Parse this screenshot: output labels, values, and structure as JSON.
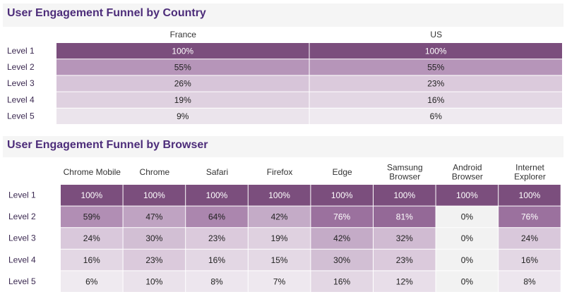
{
  "chart_data": [
    {
      "type": "heatmap",
      "title": "User Engagement  Funnel by Country",
      "columns": [
        "France",
        "US"
      ],
      "rows": [
        "Level 1",
        "Level 2",
        "Level 3",
        "Level 4",
        "Level 5"
      ],
      "values": [
        [
          "100%",
          "100%"
        ],
        [
          "55%",
          "55%"
        ],
        [
          "26%",
          "23%"
        ],
        [
          "19%",
          "16%"
        ],
        [
          "9%",
          "6%"
        ]
      ]
    },
    {
      "type": "heatmap",
      "title": "User Engagement Funnel by Browser",
      "columns": [
        "Chrome Mobile",
        "Chrome",
        "Safari",
        "Firefox",
        "Edge",
        "Samsung Browser",
        "Android Browser",
        "Internet Explorer"
      ],
      "rows": [
        "Level 1",
        "Level 2",
        "Level 3",
        "Level 4",
        "Level 5"
      ],
      "values": [
        [
          "100%",
          "100%",
          "100%",
          "100%",
          "100%",
          "100%",
          "100%",
          "100%"
        ],
        [
          "59%",
          "47%",
          "64%",
          "42%",
          "76%",
          "81%",
          "0%",
          "76%"
        ],
        [
          "24%",
          "30%",
          "23%",
          "19%",
          "42%",
          "32%",
          "0%",
          "24%"
        ],
        [
          "16%",
          "23%",
          "16%",
          "15%",
          "30%",
          "23%",
          "0%",
          "16%"
        ],
        [
          "6%",
          "10%",
          "8%",
          "7%",
          "16%",
          "12%",
          "0%",
          "8%"
        ]
      ]
    }
  ],
  "colors": {
    "title": "#4d2d7a",
    "level_1": "#7b4e7d",
    "level_2": "#b091b3",
    "light": "#e2d5e3",
    "lightest": "#efeaf0"
  }
}
